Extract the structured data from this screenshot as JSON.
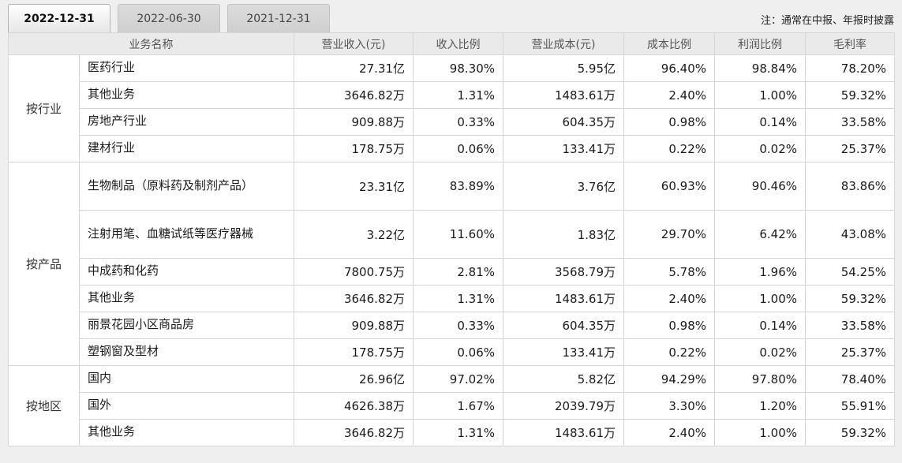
{
  "tabs": {
    "items": [
      {
        "label": "2022-12-31",
        "active": true
      },
      {
        "label": "2022-06-30",
        "active": false
      },
      {
        "label": "2021-12-31",
        "active": false
      }
    ]
  },
  "note": "注：通常在中报、年报时披露",
  "colors": {
    "page_bg": "#efefef",
    "header_bg": "#eaeaea",
    "table_border": "#d6d6d6",
    "tab_inactive_bg": "#d3d3d3",
    "tab_active_bg": "#f5f5f5"
  },
  "table": {
    "headers": {
      "business_name": "业务名称",
      "revenue": "营业收入(元)",
      "revenue_ratio": "收入比例",
      "cost": "营业成本(元)",
      "cost_ratio": "成本比例",
      "profit_ratio": "利润比例",
      "gross_margin": "毛利率"
    },
    "groups": [
      {
        "label": "按行业",
        "rows": [
          {
            "name": "医药行业",
            "revenue": "27.31亿",
            "revenue_ratio": "98.30%",
            "cost": "5.95亿",
            "cost_ratio": "96.40%",
            "profit_ratio": "98.84%",
            "gross_margin": "78.20%"
          },
          {
            "name": "其他业务",
            "revenue": "3646.82万",
            "revenue_ratio": "1.31%",
            "cost": "1483.61万",
            "cost_ratio": "2.40%",
            "profit_ratio": "1.00%",
            "gross_margin": "59.32%"
          },
          {
            "name": "房地产行业",
            "revenue": "909.88万",
            "revenue_ratio": "0.33%",
            "cost": "604.35万",
            "cost_ratio": "0.98%",
            "profit_ratio": "0.14%",
            "gross_margin": "33.58%"
          },
          {
            "name": "建材行业",
            "revenue": "178.75万",
            "revenue_ratio": "0.06%",
            "cost": "133.41万",
            "cost_ratio": "0.22%",
            "profit_ratio": "0.02%",
            "gross_margin": "25.37%"
          }
        ]
      },
      {
        "label": "按产品",
        "rows": [
          {
            "name": "生物制品（原料药及制剂产品）",
            "revenue": "23.31亿",
            "revenue_ratio": "83.89%",
            "cost": "3.76亿",
            "cost_ratio": "60.93%",
            "profit_ratio": "90.46%",
            "gross_margin": "83.86%"
          },
          {
            "name": "注射用笔、血糖试纸等医疗器械",
            "revenue": "3.22亿",
            "revenue_ratio": "11.60%",
            "cost": "1.83亿",
            "cost_ratio": "29.70%",
            "profit_ratio": "6.42%",
            "gross_margin": "43.08%"
          },
          {
            "name": "中成药和化药",
            "revenue": "7800.75万",
            "revenue_ratio": "2.81%",
            "cost": "3568.79万",
            "cost_ratio": "5.78%",
            "profit_ratio": "1.96%",
            "gross_margin": "54.25%"
          },
          {
            "name": "其他业务",
            "revenue": "3646.82万",
            "revenue_ratio": "1.31%",
            "cost": "1483.61万",
            "cost_ratio": "2.40%",
            "profit_ratio": "1.00%",
            "gross_margin": "59.32%"
          },
          {
            "name": "丽景花园小区商品房",
            "revenue": "909.88万",
            "revenue_ratio": "0.33%",
            "cost": "604.35万",
            "cost_ratio": "0.98%",
            "profit_ratio": "0.14%",
            "gross_margin": "33.58%"
          },
          {
            "name": "塑钢窗及型材",
            "revenue": "178.75万",
            "revenue_ratio": "0.06%",
            "cost": "133.41万",
            "cost_ratio": "0.22%",
            "profit_ratio": "0.02%",
            "gross_margin": "25.37%"
          }
        ]
      },
      {
        "label": "按地区",
        "rows": [
          {
            "name": "国内",
            "revenue": "26.96亿",
            "revenue_ratio": "97.02%",
            "cost": "5.82亿",
            "cost_ratio": "94.29%",
            "profit_ratio": "97.80%",
            "gross_margin": "78.40%"
          },
          {
            "name": "国外",
            "revenue": "4626.38万",
            "revenue_ratio": "1.67%",
            "cost": "2039.79万",
            "cost_ratio": "3.30%",
            "profit_ratio": "1.20%",
            "gross_margin": "55.91%"
          },
          {
            "name": "其他业务",
            "revenue": "3646.82万",
            "revenue_ratio": "1.31%",
            "cost": "1483.61万",
            "cost_ratio": "2.40%",
            "profit_ratio": "1.00%",
            "gross_margin": "59.32%"
          }
        ]
      }
    ]
  }
}
